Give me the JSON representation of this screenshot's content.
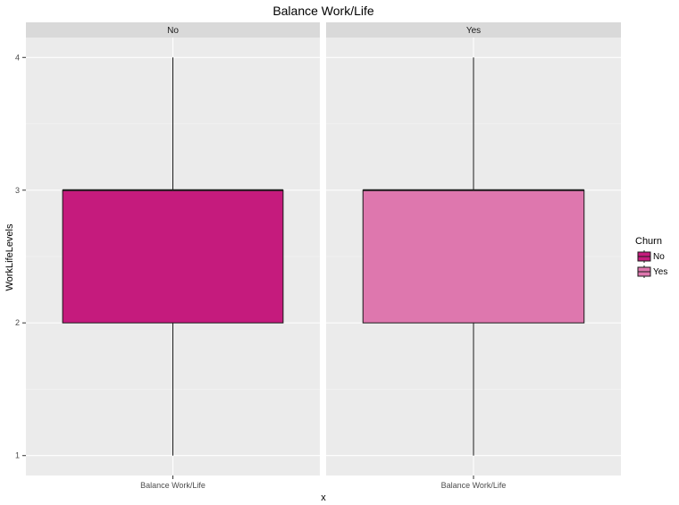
{
  "chart_data": {
    "type": "boxplot",
    "title": "Balance Work/Life",
    "xlabel": "x",
    "ylabel": "WorkLifeLevels",
    "ylim": [
      0.85,
      4.15
    ],
    "yticks": [
      1,
      2,
      3,
      4
    ],
    "facets": [
      {
        "label": "No",
        "category": "Balance Work/Life",
        "fill": "#C51B7D",
        "box": {
          "min": 1,
          "q1": 2,
          "median": 3,
          "q3": 3,
          "max": 4
        }
      },
      {
        "label": "Yes",
        "category": "Balance Work/Life",
        "fill": "#DE77AE",
        "box": {
          "min": 1,
          "q1": 2,
          "median": 3,
          "q3": 3,
          "max": 4
        }
      }
    ],
    "legend": {
      "title": "Churn",
      "position": "right",
      "entries": [
        {
          "label": "No",
          "color": "#C51B7D"
        },
        {
          "label": "Yes",
          "color": "#DE77AE"
        }
      ]
    },
    "grid": true,
    "panel_background": "#EBEBEB",
    "strip_background": "#D9D9D9"
  }
}
